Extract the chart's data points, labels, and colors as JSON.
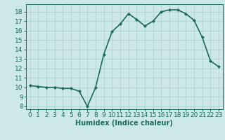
{
  "x": [
    0,
    1,
    2,
    3,
    4,
    5,
    6,
    7,
    8,
    9,
    10,
    11,
    12,
    13,
    14,
    15,
    16,
    17,
    18,
    19,
    20,
    21,
    22,
    23
  ],
  "y": [
    10.2,
    10.1,
    10.0,
    10.0,
    9.9,
    9.9,
    9.6,
    8.0,
    10.0,
    13.5,
    15.9,
    16.7,
    17.8,
    17.2,
    16.5,
    17.0,
    18.0,
    18.2,
    18.2,
    17.8,
    17.1,
    15.3,
    12.8,
    12.2
  ],
  "line_color": "#1a6b5a",
  "marker": "D",
  "marker_size": 2,
  "line_width": 1.2,
  "bg_color": "#cce8e8",
  "grid_color": "#aacece",
  "xlabel": "Humidex (Indice chaleur)",
  "xlabel_fontsize": 7,
  "tick_fontsize": 6.5,
  "xlim": [
    -0.5,
    23.5
  ],
  "ylim": [
    7.7,
    18.8
  ],
  "yticks": [
    8,
    9,
    10,
    11,
    12,
    13,
    14,
    15,
    16,
    17,
    18
  ],
  "xticks": [
    0,
    1,
    2,
    3,
    4,
    5,
    6,
    7,
    8,
    9,
    10,
    11,
    12,
    13,
    14,
    15,
    16,
    17,
    18,
    19,
    20,
    21,
    22,
    23
  ]
}
